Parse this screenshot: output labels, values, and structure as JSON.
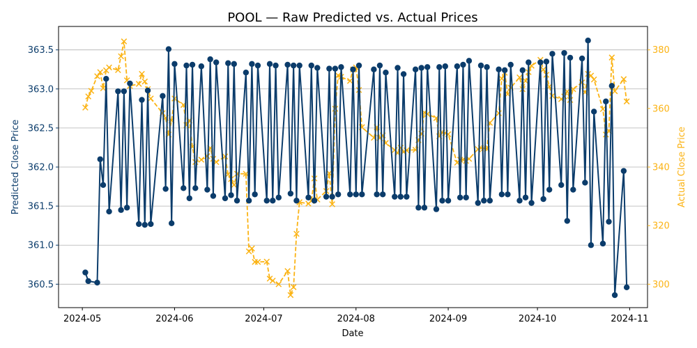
{
  "chart_data": {
    "type": "line",
    "title": "POOL — Raw Predicted vs. Actual Prices",
    "xlabel": "Date",
    "ylabel_left": "Predicted Close Price",
    "ylabel_right": "Actual Close Price",
    "xlim": [
      "2024-04-23",
      "2024-11-07"
    ],
    "ylim_left": [
      360.2,
      363.8
    ],
    "ylim_right": [
      292,
      388
    ],
    "x_ticks": [
      "2024-05",
      "2024-06",
      "2024-07",
      "2024-08",
      "2024-09",
      "2024-10",
      "2024-11"
    ],
    "y_ticks_left": [
      360.5,
      361.0,
      361.5,
      362.0,
      362.5,
      363.0,
      363.5
    ],
    "y_ticks_left_labels": [
      "360.5",
      "361.0",
      "361.5",
      "362.0",
      "362.5",
      "363.0",
      "363.5"
    ],
    "y_ticks_right": [
      300,
      320,
      340,
      360,
      380
    ],
    "grid": "horizontal",
    "colors": {
      "predicted": "#0b3c6b",
      "actual": "#fbb314",
      "grid": "#b0b0b0",
      "axis": "#000000"
    },
    "series": [
      {
        "key": "predicted",
        "axis": "left",
        "style": "solid line with circle markers",
        "points": [
          [
            "2024-05-02",
            360.65
          ],
          [
            "2024-05-03",
            360.54
          ],
          [
            "2024-05-06",
            360.52
          ],
          [
            "2024-05-07",
            362.1
          ],
          [
            "2024-05-08",
            361.77
          ],
          [
            "2024-05-09",
            363.13
          ],
          [
            "2024-05-10",
            361.43
          ],
          [
            "2024-05-13",
            362.97
          ],
          [
            "2024-05-14",
            361.45
          ],
          [
            "2024-05-15",
            362.97
          ],
          [
            "2024-05-16",
            361.48
          ],
          [
            "2024-05-17",
            363.07
          ],
          [
            "2024-05-20",
            361.27
          ],
          [
            "2024-05-21",
            362.86
          ],
          [
            "2024-05-22",
            361.26
          ],
          [
            "2024-05-23",
            362.98
          ],
          [
            "2024-05-24",
            361.27
          ],
          [
            "2024-05-28",
            362.91
          ],
          [
            "2024-05-29",
            361.72
          ],
          [
            "2024-05-30",
            363.51
          ],
          [
            "2024-05-31",
            361.28
          ],
          [
            "2024-06-01",
            363.32
          ],
          [
            "2024-06-04",
            361.73
          ],
          [
            "2024-06-05",
            363.3
          ],
          [
            "2024-06-06",
            361.6
          ],
          [
            "2024-06-07",
            363.31
          ],
          [
            "2024-06-08",
            361.73
          ],
          [
            "2024-06-10",
            363.29
          ],
          [
            "2024-06-12",
            361.71
          ],
          [
            "2024-06-13",
            363.38
          ],
          [
            "2024-06-14",
            361.63
          ],
          [
            "2024-06-15",
            363.34
          ],
          [
            "2024-06-18",
            361.6
          ],
          [
            "2024-06-19",
            363.33
          ],
          [
            "2024-06-20",
            361.64
          ],
          [
            "2024-06-21",
            363.32
          ],
          [
            "2024-06-22",
            361.57
          ],
          [
            "2024-06-25",
            363.21
          ],
          [
            "2024-06-26",
            361.57
          ],
          [
            "2024-06-27",
            363.32
          ],
          [
            "2024-06-28",
            361.65
          ],
          [
            "2024-06-29",
            363.3
          ],
          [
            "2024-07-02",
            361.57
          ],
          [
            "2024-07-03",
            363.32
          ],
          [
            "2024-07-04",
            361.57
          ],
          [
            "2024-07-05",
            363.3
          ],
          [
            "2024-07-06",
            361.61
          ],
          [
            "2024-07-09",
            363.31
          ],
          [
            "2024-07-10",
            361.66
          ],
          [
            "2024-07-11",
            363.3
          ],
          [
            "2024-07-12",
            361.57
          ],
          [
            "2024-07-13",
            363.3
          ],
          [
            "2024-07-16",
            361.61
          ],
          [
            "2024-07-17",
            363.3
          ],
          [
            "2024-07-18",
            361.57
          ],
          [
            "2024-07-19",
            363.27
          ],
          [
            "2024-07-22",
            361.62
          ],
          [
            "2024-07-23",
            363.26
          ],
          [
            "2024-07-24",
            361.62
          ],
          [
            "2024-07-25",
            363.26
          ],
          [
            "2024-07-26",
            361.65
          ],
          [
            "2024-07-27",
            363.28
          ],
          [
            "2024-07-30",
            361.65
          ],
          [
            "2024-07-31",
            363.25
          ],
          [
            "2024-08-01",
            361.65
          ],
          [
            "2024-08-02",
            363.3
          ],
          [
            "2024-08-03",
            361.65
          ],
          [
            "2024-08-07",
            363.25
          ],
          [
            "2024-08-08",
            361.65
          ],
          [
            "2024-08-09",
            363.3
          ],
          [
            "2024-08-10",
            361.65
          ],
          [
            "2024-08-11",
            363.21
          ],
          [
            "2024-08-14",
            361.62
          ],
          [
            "2024-08-15",
            363.27
          ],
          [
            "2024-08-16",
            361.62
          ],
          [
            "2024-08-17",
            363.19
          ],
          [
            "2024-08-18",
            361.62
          ],
          [
            "2024-08-21",
            363.25
          ],
          [
            "2024-08-22",
            361.48
          ],
          [
            "2024-08-23",
            363.27
          ],
          [
            "2024-08-24",
            361.48
          ],
          [
            "2024-08-25",
            363.28
          ],
          [
            "2024-08-28",
            361.46
          ],
          [
            "2024-08-29",
            363.28
          ],
          [
            "2024-08-30",
            361.57
          ],
          [
            "2024-08-31",
            363.29
          ],
          [
            "2024-09-01",
            361.57
          ],
          [
            "2024-09-04",
            363.29
          ],
          [
            "2024-09-05",
            361.61
          ],
          [
            "2024-09-06",
            363.31
          ],
          [
            "2024-09-07",
            361.61
          ],
          [
            "2024-09-08",
            363.36
          ],
          [
            "2024-09-11",
            361.54
          ],
          [
            "2024-09-12",
            363.3
          ],
          [
            "2024-09-13",
            361.57
          ],
          [
            "2024-09-14",
            363.28
          ],
          [
            "2024-09-15",
            361.57
          ],
          [
            "2024-09-18",
            363.25
          ],
          [
            "2024-09-19",
            361.65
          ],
          [
            "2024-09-20",
            363.24
          ],
          [
            "2024-09-21",
            361.65
          ],
          [
            "2024-09-22",
            363.31
          ],
          [
            "2024-09-25",
            361.57
          ],
          [
            "2024-09-26",
            363.24
          ],
          [
            "2024-09-27",
            361.61
          ],
          [
            "2024-09-28",
            363.34
          ],
          [
            "2024-09-29",
            361.54
          ],
          [
            "2024-10-02",
            363.34
          ],
          [
            "2024-10-03",
            361.59
          ],
          [
            "2024-10-04",
            363.35
          ],
          [
            "2024-10-05",
            361.71
          ],
          [
            "2024-10-06",
            363.45
          ],
          [
            "2024-10-09",
            361.77
          ],
          [
            "2024-10-10",
            363.46
          ],
          [
            "2024-10-11",
            361.31
          ],
          [
            "2024-10-12",
            363.4
          ],
          [
            "2024-10-13",
            361.71
          ],
          [
            "2024-10-16",
            363.39
          ],
          [
            "2024-10-17",
            361.8
          ],
          [
            "2024-10-18",
            363.62
          ],
          [
            "2024-10-19",
            361.0
          ],
          [
            "2024-10-20",
            362.71
          ],
          [
            "2024-10-23",
            361.02
          ],
          [
            "2024-10-24",
            362.84
          ],
          [
            "2024-10-25",
            361.3
          ],
          [
            "2024-10-26",
            363.04
          ],
          [
            "2024-10-27",
            360.36
          ],
          [
            "2024-10-30",
            361.95
          ],
          [
            "2024-10-31",
            360.46
          ]
        ]
      },
      {
        "key": "actual",
        "axis": "right",
        "style": "dashed line with x markers",
        "points": [
          [
            "2024-05-02",
            360.3
          ],
          [
            "2024-05-03",
            364.1
          ],
          [
            "2024-05-04",
            366.0
          ],
          [
            "2024-05-06",
            371.0
          ],
          [
            "2024-05-07",
            372.4
          ],
          [
            "2024-05-08",
            366.9
          ],
          [
            "2024-05-09",
            373.0
          ],
          [
            "2024-05-10",
            374.0
          ],
          [
            "2024-05-13",
            373.1
          ],
          [
            "2024-05-14",
            377.8
          ],
          [
            "2024-05-15",
            382.9
          ],
          [
            "2024-05-16",
            369.6
          ],
          [
            "2024-05-17",
            367.7
          ],
          [
            "2024-05-20",
            368.4
          ],
          [
            "2024-05-21",
            371.8
          ],
          [
            "2024-05-22",
            369.2
          ],
          [
            "2024-05-23",
            366.6
          ],
          [
            "2024-05-24",
            363.4
          ],
          [
            "2024-05-28",
            358.4
          ],
          [
            "2024-05-29",
            356.8
          ],
          [
            "2024-05-30",
            351.1
          ],
          [
            "2024-05-31",
            355.9
          ],
          [
            "2024-06-01",
            363.4
          ],
          [
            "2024-06-04",
            361.2
          ],
          [
            "2024-06-05",
            354.3
          ],
          [
            "2024-06-06",
            355.9
          ],
          [
            "2024-06-07",
            346.9
          ],
          [
            "2024-06-08",
            341.7
          ],
          [
            "2024-06-10",
            342.5
          ],
          [
            "2024-06-12",
            343.7
          ],
          [
            "2024-06-13",
            346.5
          ],
          [
            "2024-06-14",
            342.8
          ],
          [
            "2024-06-15",
            341.7
          ],
          [
            "2024-06-18",
            343.6
          ],
          [
            "2024-06-19",
            337.5
          ],
          [
            "2024-06-20",
            335.9
          ],
          [
            "2024-06-21",
            333.9
          ],
          [
            "2024-06-22",
            337.7
          ],
          [
            "2024-06-25",
            337.7
          ],
          [
            "2024-06-26",
            311.2
          ],
          [
            "2024-06-27",
            312.2
          ],
          [
            "2024-06-28",
            307.6
          ],
          [
            "2024-06-29",
            307.6
          ],
          [
            "2024-07-02",
            307.7
          ],
          [
            "2024-07-03",
            301.9
          ],
          [
            "2024-07-04",
            301.2
          ],
          [
            "2024-07-06",
            300.0
          ],
          [
            "2024-07-09",
            304.5
          ],
          [
            "2024-07-10",
            296.3
          ],
          [
            "2024-07-11",
            299.0
          ],
          [
            "2024-07-12",
            317.2
          ],
          [
            "2024-07-13",
            328.0
          ],
          [
            "2024-07-16",
            327.5
          ],
          [
            "2024-07-17",
            328.4
          ],
          [
            "2024-07-18",
            336.1
          ],
          [
            "2024-07-19",
            328.9
          ],
          [
            "2024-07-22",
            331.8
          ],
          [
            "2024-07-23",
            337.9
          ],
          [
            "2024-07-24",
            327.3
          ],
          [
            "2024-07-25",
            359.9
          ],
          [
            "2024-07-26",
            371.3
          ],
          [
            "2024-07-27",
            370.8
          ],
          [
            "2024-07-30",
            369.4
          ],
          [
            "2024-07-31",
            373.3
          ],
          [
            "2024-08-01",
            374.0
          ],
          [
            "2024-08-02",
            366.3
          ],
          [
            "2024-08-03",
            353.6
          ],
          [
            "2024-08-07",
            350.0
          ],
          [
            "2024-08-08",
            353.6
          ],
          [
            "2024-08-09",
            349.9
          ],
          [
            "2024-08-10",
            350.8
          ],
          [
            "2024-08-11",
            348.2
          ],
          [
            "2024-08-14",
            345.8
          ],
          [
            "2024-08-15",
            344.8
          ],
          [
            "2024-08-16",
            346.6
          ],
          [
            "2024-08-17",
            345.2
          ],
          [
            "2024-08-18",
            345.7
          ],
          [
            "2024-08-21",
            345.9
          ],
          [
            "2024-08-22",
            349.2
          ],
          [
            "2024-08-23",
            351.4
          ],
          [
            "2024-08-24",
            358.6
          ],
          [
            "2024-08-25",
            358.1
          ],
          [
            "2024-08-28",
            356.7
          ],
          [
            "2024-08-29",
            350.5
          ],
          [
            "2024-08-30",
            351.8
          ],
          [
            "2024-08-31",
            351.6
          ],
          [
            "2024-09-01",
            351.2
          ],
          [
            "2024-09-04",
            341.5
          ],
          [
            "2024-09-05",
            342.5
          ],
          [
            "2024-09-06",
            342.5
          ],
          [
            "2024-09-07",
            342.1
          ],
          [
            "2024-09-08",
            342.8
          ],
          [
            "2024-09-11",
            346.1
          ],
          [
            "2024-09-12",
            346.5
          ],
          [
            "2024-09-13",
            346.4
          ],
          [
            "2024-09-14",
            346.2
          ],
          [
            "2024-09-15",
            355.1
          ],
          [
            "2024-09-18",
            358.4
          ],
          [
            "2024-09-19",
            370.2
          ],
          [
            "2024-09-20",
            372.2
          ],
          [
            "2024-09-21",
            364.9
          ],
          [
            "2024-09-22",
            367.1
          ],
          [
            "2024-09-25",
            370.6
          ],
          [
            "2024-09-26",
            366.6
          ],
          [
            "2024-09-27",
            369.4
          ],
          [
            "2024-09-28",
            372.4
          ],
          [
            "2024-09-29",
            374.6
          ],
          [
            "2024-10-02",
            376.6
          ],
          [
            "2024-10-03",
            373.3
          ],
          [
            "2024-10-04",
            371.5
          ],
          [
            "2024-10-05",
            367.5
          ],
          [
            "2024-10-06",
            364.3
          ],
          [
            "2024-10-09",
            363.2
          ],
          [
            "2024-10-10",
            364.1
          ],
          [
            "2024-10-11",
            365.8
          ],
          [
            "2024-10-12",
            362.9
          ],
          [
            "2024-10-13",
            366.6
          ],
          [
            "2024-10-16",
            368.9
          ],
          [
            "2024-10-17",
            365.5
          ],
          [
            "2024-10-18",
            371.8
          ],
          [
            "2024-10-19",
            371.2
          ],
          [
            "2024-10-20",
            369.9
          ],
          [
            "2024-10-23",
            359.8
          ],
          [
            "2024-10-24",
            351.1
          ],
          [
            "2024-10-25",
            352.3
          ],
          [
            "2024-10-26",
            377.4
          ],
          [
            "2024-10-27",
            365.9
          ],
          [
            "2024-10-30",
            370.0
          ],
          [
            "2024-10-31",
            362.4
          ]
        ]
      }
    ]
  }
}
